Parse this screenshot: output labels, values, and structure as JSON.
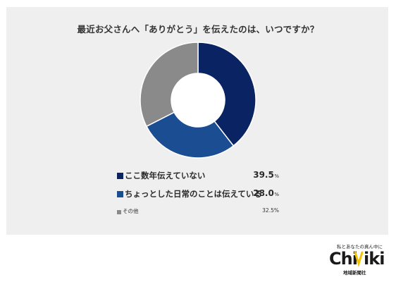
{
  "colors": {
    "panel_bg": "#efefef",
    "slice1": "#0a2463",
    "slice2": "#1b4d92",
    "slice3": "#8a8a8a",
    "accent_yellow": "#f2c200"
  },
  "chart_data": {
    "type": "pie",
    "title": "最近お父さんへ「ありがとう」を伝えたのは、いつですか？",
    "donut": true,
    "legend_placement": "bottom",
    "categories": [
      "ここ数年伝えていない",
      "ちょっとした日常のことは伝えている",
      "その他"
    ],
    "values": [
      39.5,
      28.0,
      32.5
    ],
    "value_labels": [
      "39.5",
      "28.0",
      "32.5"
    ],
    "unit": "%"
  },
  "brand": {
    "tagline": "私とあなたの真ん中に",
    "logo_text": "ChiΛiki",
    "logo_sub": "地域新聞社"
  }
}
